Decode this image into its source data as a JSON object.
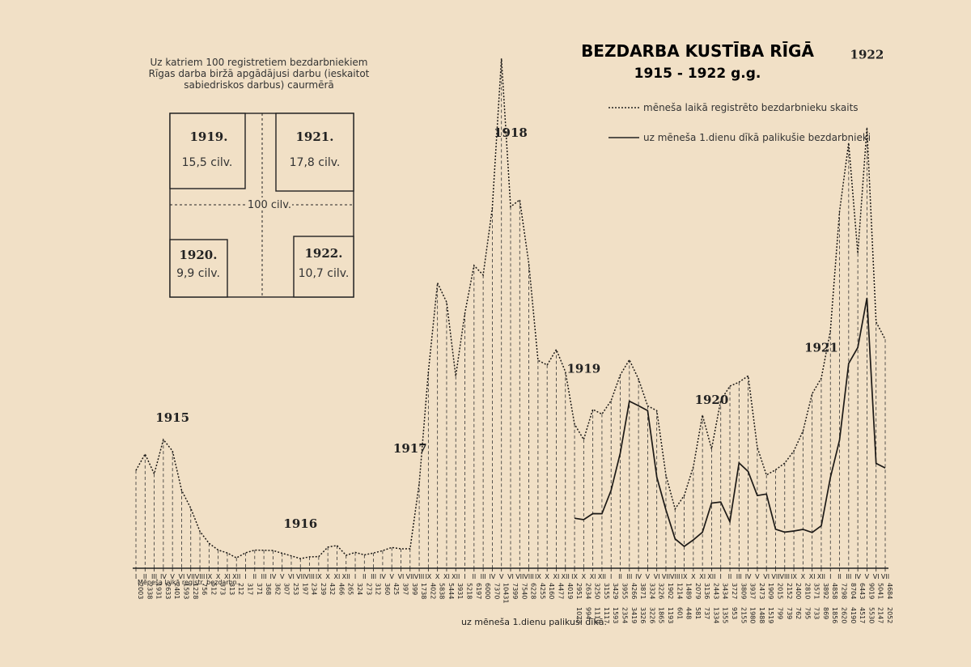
{
  "title": "BEZDARBA KUSTĪBA RĪGĀ",
  "subtitle": "1915 - 1922 g.g.",
  "note": "Uz katriem 100 registretiem bezdarbniekiem Rīgas darba biržā apgādājusi darbu (ieskaitot sabiedriskos darbus) caurmērā",
  "box_center_label": "100 cilv.",
  "boxes": [
    {
      "year": "1919.",
      "value": "15,5 cilv."
    },
    {
      "year": "1921.",
      "value": "17,8 cilv."
    },
    {
      "year": "1920.",
      "value": "9,9 cilv."
    },
    {
      "year": "1922.",
      "value": "10,7 cilv."
    }
  ],
  "legend": {
    "dotted": "mēneša laikā registrēto bezdarbnieku skaits",
    "solid": "uz mēneša 1.dienu dīkā palikušie bezdarbnieki"
  },
  "row_label_registered": "Mēneša laikā registr. bezdarbn.",
  "row_label_remaining": "uz mēneša 1.dienu palikuši dīkā.",
  "chart_data": {
    "type": "line",
    "year_labels": [
      "1915",
      "1916",
      "1917",
      "1918",
      "1919",
      "1920",
      "1921",
      "1922"
    ],
    "months": [
      "I",
      "II",
      "III",
      "IV",
      "V",
      "VI",
      "VII",
      "VIII",
      "IX",
      "X",
      "XI",
      "XII",
      "I",
      "II",
      "III",
      "IV",
      "V",
      "VI",
      "VII",
      "VIII",
      "IX",
      "X",
      "XI",
      "XII",
      "I",
      "II",
      "III",
      "IV",
      "V",
      "VI",
      "VII",
      "VIII",
      "IX",
      "X",
      "XI",
      "XII",
      "I",
      "II",
      "III",
      "IV",
      "V",
      "VI",
      "VII",
      "VIII",
      "IX",
      "X",
      "XI",
      "XII",
      "IX",
      "X",
      "XI",
      "XII",
      "I",
      "II",
      "III",
      "IV",
      "V",
      "VI",
      "VII",
      "VIII",
      "IX",
      "X",
      "XI",
      "XII",
      "I",
      "II",
      "III",
      "IV",
      "V",
      "VI",
      "VII",
      "VIII",
      "IX",
      "X",
      "XI",
      "XII",
      "I",
      "II",
      "III",
      "IV",
      "V",
      "VI",
      "VII"
    ],
    "series": [
      {
        "name": "mēneša laikā registrēto bezdarbnieku skaits",
        "style": "dotted",
        "values": [
          2003,
          2338,
          1931,
          2633,
          2401,
          1593,
          1228,
          756,
          512,
          373,
          313,
          212,
          317,
          371,
          368,
          362,
          307,
          253,
          197,
          234,
          239,
          432,
          466,
          265,
          324,
          273,
          312,
          360,
          425,
          397,
          399,
          1738,
          4022,
          5838,
          5444,
          3931,
          5218,
          6197,
          6000,
          7370,
          10431,
          7399,
          7540,
          6228,
          4255,
          4160,
          4477,
          4019,
          2951,
          2634,
          3250,
          3155,
          3429,
          3955,
          4266,
          3871,
          3324,
          3226,
          1902,
          1214,
          1489,
          2079,
          3136,
          2443,
          3434,
          3727,
          3809,
          3937,
          2473,
          1909,
          2015,
          2152,
          2400,
          2810,
          3571,
          3892,
          4858,
          7298,
          8704,
          6443,
          9019,
          5041,
          4684
        ]
      },
      {
        "name": "uz mēneša 1.dienu dīkā palikušie bezdarbnieki",
        "style": "solid",
        "values": [
          null,
          null,
          null,
          null,
          null,
          null,
          null,
          null,
          null,
          null,
          null,
          null,
          null,
          null,
          null,
          null,
          null,
          null,
          null,
          null,
          null,
          null,
          null,
          null,
          null,
          null,
          null,
          null,
          null,
          null,
          null,
          null,
          null,
          null,
          null,
          null,
          null,
          null,
          null,
          null,
          null,
          null,
          null,
          null,
          null,
          null,
          null,
          null,
          1023,
          994,
          1119,
          1117,
          1593,
          2354,
          3419,
          3326,
          3226,
          1865,
          1193,
          601,
          448,
          581,
          737,
          1334,
          1355,
          953,
          2155,
          1980,
          1488,
          1519,
          799,
          739,
          762,
          795,
          733,
          869,
          1856,
          2620,
          4190,
          4517,
          5530,
          2147,
          2052
        ]
      }
    ],
    "ylim": [
      0,
      11000
    ]
  }
}
